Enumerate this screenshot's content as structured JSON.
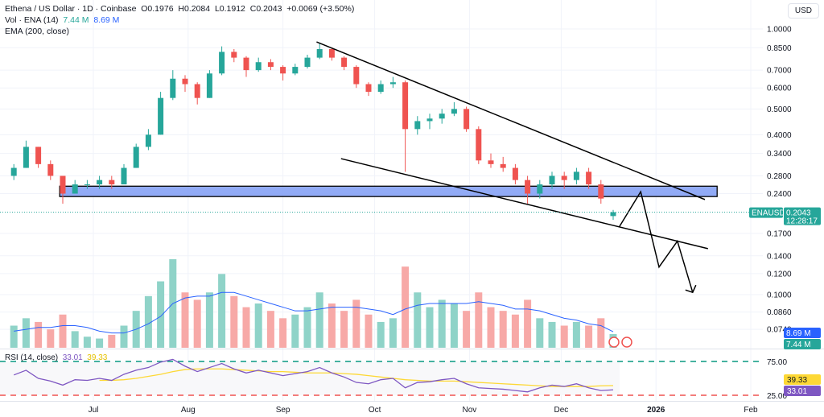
{
  "header": {
    "title": "Ethena / US Dollar · 1D · Coinbase",
    "open": "O0.1976",
    "high": "H0.2084",
    "low": "L0.1912",
    "close": "C0.2043",
    "change": "+0.0069 (+3.50%)"
  },
  "volume_legend": {
    "label": "Vol · ENA (14)",
    "vol": "7.44 M",
    "ma": "8.69 M"
  },
  "ema_legend": {
    "label": "EMA (200, close)"
  },
  "rsi_legend": {
    "label": "RSI (14, close)",
    "rsi": "33.01",
    "ma": "39.33"
  },
  "currency_button": "USD",
  "colors": {
    "up": "#26a69a",
    "down": "#ef5350",
    "vol_up": "#8fd3c8",
    "vol_down": "#f7a9a7",
    "vol_ma": "#2962ff",
    "rsi": "#7e57c2",
    "rsi_ma": "#fdd835",
    "zone": "#7f9cf5"
  },
  "chart_data": {
    "type": "candlestick",
    "scale": "log",
    "price_ticks": [
      "1.0000",
      "0.8500",
      "0.7000",
      "0.6000",
      "0.5000",
      "0.4000",
      "0.3400",
      "0.2800",
      "0.2400",
      "0.1700",
      "0.1400",
      "0.1200",
      "0.1000",
      "0.0860",
      "0.0740"
    ],
    "time_ticks": [
      {
        "label": "Jul",
        "date": "2025-07-01"
      },
      {
        "label": "Aug",
        "date": "2025-08-01"
      },
      {
        "label": "Sep",
        "date": "2025-09-01"
      },
      {
        "label": "Oct",
        "date": "2025-10-01"
      },
      {
        "label": "Nov",
        "date": "2025-11-01"
      },
      {
        "label": "Dec",
        "date": "2025-12-01"
      },
      {
        "label": "2026",
        "date": "2026-01-01"
      },
      {
        "label": "Feb",
        "date": "2026-02-01"
      }
    ],
    "candles": [
      [
        "2025-06-05",
        0.28,
        0.31,
        0.27,
        0.3
      ],
      [
        "2025-06-09",
        0.3,
        0.38,
        0.3,
        0.36
      ],
      [
        "2025-06-13",
        0.36,
        0.36,
        0.3,
        0.31
      ],
      [
        "2025-06-17",
        0.31,
        0.32,
        0.27,
        0.28
      ],
      [
        "2025-06-21",
        0.28,
        0.28,
        0.22,
        0.24
      ],
      [
        "2025-06-25",
        0.24,
        0.27,
        0.24,
        0.26
      ],
      [
        "2025-06-29",
        0.26,
        0.27,
        0.25,
        0.26
      ],
      [
        "2025-07-03",
        0.26,
        0.28,
        0.25,
        0.27
      ],
      [
        "2025-07-07",
        0.27,
        0.28,
        0.25,
        0.26
      ],
      [
        "2025-07-11",
        0.26,
        0.31,
        0.26,
        0.3
      ],
      [
        "2025-07-15",
        0.3,
        0.37,
        0.3,
        0.36
      ],
      [
        "2025-07-19",
        0.36,
        0.42,
        0.35,
        0.4
      ],
      [
        "2025-07-23",
        0.4,
        0.58,
        0.4,
        0.55
      ],
      [
        "2025-07-27",
        0.55,
        0.7,
        0.54,
        0.65
      ],
      [
        "2025-07-31",
        0.65,
        0.67,
        0.58,
        0.62
      ],
      [
        "2025-08-04",
        0.62,
        0.63,
        0.52,
        0.55
      ],
      [
        "2025-08-08",
        0.55,
        0.7,
        0.55,
        0.68
      ],
      [
        "2025-08-12",
        0.68,
        0.86,
        0.67,
        0.82
      ],
      [
        "2025-08-16",
        0.82,
        0.84,
        0.75,
        0.78
      ],
      [
        "2025-08-20",
        0.78,
        0.79,
        0.66,
        0.7
      ],
      [
        "2025-08-24",
        0.7,
        0.78,
        0.69,
        0.75
      ],
      [
        "2025-08-28",
        0.75,
        0.77,
        0.7,
        0.72
      ],
      [
        "2025-09-01",
        0.72,
        0.73,
        0.64,
        0.68
      ],
      [
        "2025-09-05",
        0.68,
        0.74,
        0.67,
        0.72
      ],
      [
        "2025-09-09",
        0.72,
        0.8,
        0.71,
        0.78
      ],
      [
        "2025-09-13",
        0.78,
        0.88,
        0.77,
        0.84
      ],
      [
        "2025-09-17",
        0.84,
        0.85,
        0.76,
        0.78
      ],
      [
        "2025-09-21",
        0.78,
        0.79,
        0.7,
        0.72
      ],
      [
        "2025-09-25",
        0.72,
        0.73,
        0.6,
        0.62
      ],
      [
        "2025-09-29",
        0.62,
        0.63,
        0.56,
        0.58
      ],
      [
        "2025-10-03",
        0.58,
        0.64,
        0.57,
        0.62
      ],
      [
        "2025-10-07",
        0.62,
        0.66,
        0.6,
        0.63
      ],
      [
        "2025-10-11",
        0.63,
        0.64,
        0.29,
        0.42
      ],
      [
        "2025-10-15",
        0.42,
        0.47,
        0.4,
        0.45
      ],
      [
        "2025-10-19",
        0.45,
        0.48,
        0.42,
        0.46
      ],
      [
        "2025-10-23",
        0.46,
        0.5,
        0.44,
        0.48
      ],
      [
        "2025-10-27",
        0.48,
        0.53,
        0.47,
        0.5
      ],
      [
        "2025-10-31",
        0.5,
        0.51,
        0.41,
        0.42
      ],
      [
        "2025-11-04",
        0.42,
        0.43,
        0.31,
        0.32
      ],
      [
        "2025-11-08",
        0.32,
        0.34,
        0.3,
        0.31
      ],
      [
        "2025-11-12",
        0.31,
        0.33,
        0.29,
        0.3
      ],
      [
        "2025-11-16",
        0.3,
        0.31,
        0.26,
        0.27
      ],
      [
        "2025-11-20",
        0.27,
        0.28,
        0.22,
        0.24
      ],
      [
        "2025-11-24",
        0.24,
        0.27,
        0.23,
        0.26
      ],
      [
        "2025-11-28",
        0.26,
        0.29,
        0.25,
        0.28
      ],
      [
        "2025-12-02",
        0.28,
        0.29,
        0.25,
        0.27
      ],
      [
        "2025-12-06",
        0.27,
        0.3,
        0.26,
        0.29
      ],
      [
        "2025-12-10",
        0.29,
        0.3,
        0.25,
        0.26
      ],
      [
        "2025-12-14",
        0.26,
        0.27,
        0.22,
        0.23
      ],
      [
        "2025-12-18",
        0.1976,
        0.2084,
        0.1912,
        0.2043
      ]
    ],
    "volume_m": [
      12,
      16,
      14,
      10,
      18,
      9,
      6,
      5,
      7,
      12,
      20,
      28,
      36,
      48,
      30,
      26,
      30,
      40,
      28,
      22,
      24,
      20,
      16,
      18,
      22,
      30,
      24,
      20,
      26,
      18,
      14,
      16,
      44,
      30,
      22,
      26,
      24,
      20,
      30,
      22,
      20,
      18,
      26,
      16,
      14,
      12,
      14,
      12,
      16,
      7.44
    ],
    "volume_ma_m": [
      9,
      10,
      11,
      11,
      12,
      12,
      11,
      9,
      8,
      8,
      10,
      13,
      17,
      24,
      27,
      28,
      28,
      30,
      30,
      28,
      26,
      24,
      22,
      20,
      20,
      21,
      22,
      22,
      22,
      21,
      20,
      18,
      21,
      23,
      24,
      24,
      24,
      24,
      25,
      24,
      23,
      21,
      21,
      20,
      18,
      16,
      15,
      13,
      12,
      8.69
    ],
    "rsi": [
      55,
      62,
      50,
      46,
      40,
      48,
      47,
      50,
      47,
      56,
      62,
      66,
      74,
      78,
      68,
      60,
      66,
      72,
      64,
      58,
      62,
      58,
      54,
      57,
      60,
      66,
      58,
      52,
      44,
      42,
      48,
      50,
      36,
      44,
      45,
      48,
      50,
      42,
      36,
      35,
      34,
      32,
      30,
      36,
      40,
      38,
      42,
      36,
      32,
      33.01
    ],
    "rsi_ma": [
      null,
      null,
      null,
      null,
      null,
      null,
      null,
      47,
      47,
      48,
      50,
      53,
      56,
      60,
      63,
      64,
      64,
      64,
      63,
      62,
      61,
      60,
      60,
      59,
      58,
      58,
      58,
      57,
      56,
      54,
      52,
      50,
      48,
      47,
      46,
      46,
      46,
      45,
      44,
      43,
      42,
      41,
      40,
      39,
      38,
      38,
      38,
      38,
      39,
      39.33
    ],
    "rsi_levels": [
      75,
      25
    ],
    "last_price": {
      "symbol": "ENAUSD",
      "price": "0.2043",
      "countdown": "12:28:17"
    },
    "volume_labels": {
      "ma": "8.69 M",
      "vol": "7.44 M"
    },
    "rsi_labels": {
      "ma": "39.33",
      "rsi": "33.01",
      "upper": "75.00",
      "lower": "25.00"
    },
    "drawings": {
      "zone": {
        "from": "2025-06-20",
        "to": "2026-01-21",
        "low": 0.234,
        "high": 0.256
      },
      "upper_trendline": [
        [
          "2025-09-12",
          0.894
        ],
        [
          "2026-01-17",
          0.228
        ]
      ],
      "lower_trendline": [
        [
          "2025-09-20",
          0.325
        ],
        [
          "2026-01-18",
          0.149
        ]
      ],
      "projection": [
        [
          "2025-12-20",
          0.18
        ],
        [
          "2025-12-27",
          0.244
        ],
        [
          "2026-01-02",
          0.127
        ],
        [
          "2026-01-08",
          0.159
        ],
        [
          "2026-01-13",
          0.102
        ]
      ]
    }
  }
}
